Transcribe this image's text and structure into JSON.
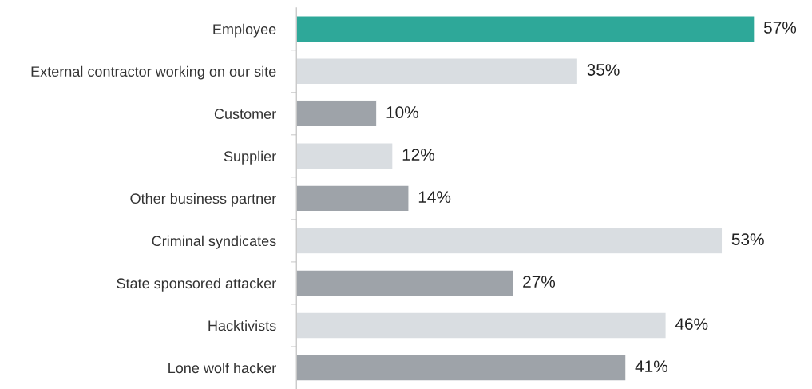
{
  "chart_data": {
    "type": "bar",
    "orientation": "horizontal",
    "categories": [
      "Employee",
      "External contractor working on our site",
      "Customer",
      "Supplier",
      "Other business partner",
      "Criminal syndicates",
      "State sponsored attacker",
      "Hacktivists",
      "Lone wolf hacker"
    ],
    "values": [
      57,
      35,
      10,
      12,
      14,
      53,
      27,
      46,
      41
    ],
    "colors": [
      "#2ea899",
      "#d9dde1",
      "#9ea3a9",
      "#d9dde1",
      "#9ea3a9",
      "#d9dde1",
      "#9ea3a9",
      "#d9dde1",
      "#9ea3a9"
    ],
    "value_labels": [
      "57%",
      "35%",
      "10%",
      "12%",
      "14%",
      "53%",
      "27%",
      "46%",
      "41%"
    ],
    "grid": false,
    "legend": false
  }
}
